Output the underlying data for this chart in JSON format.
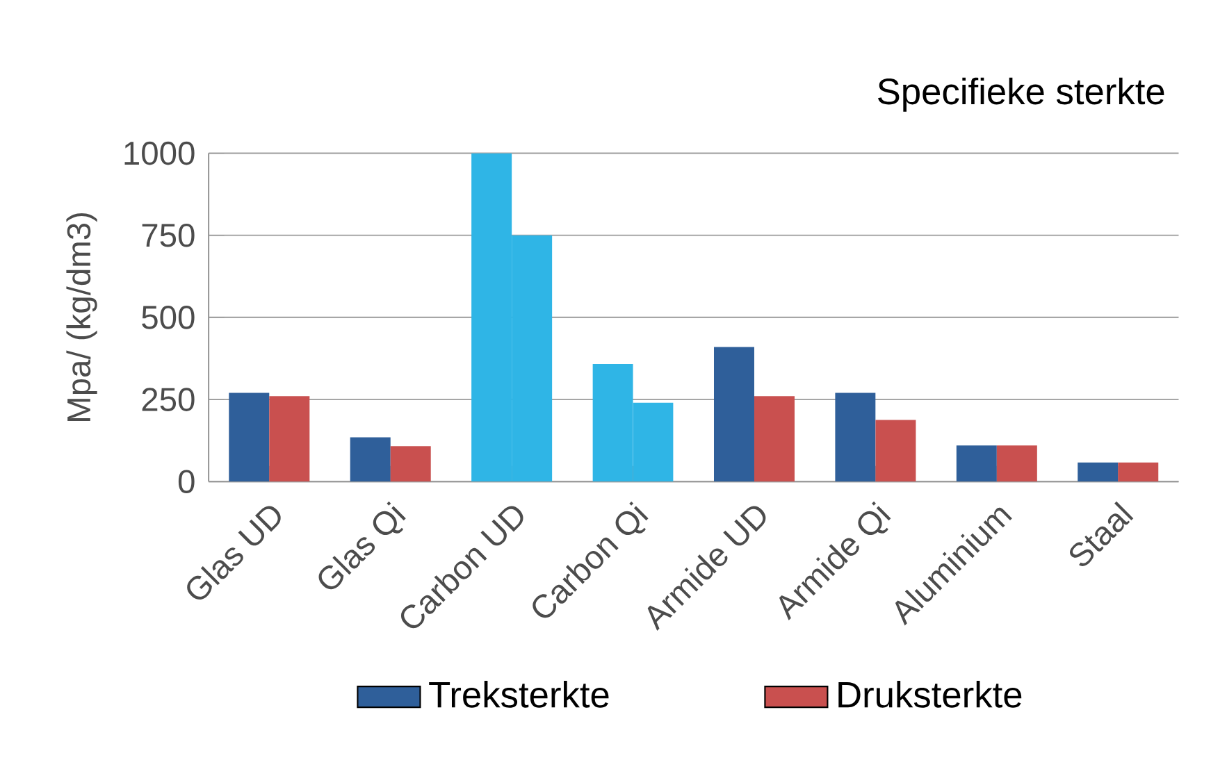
{
  "chart_data": {
    "type": "bar",
    "title": "Specifieke sterkte",
    "ylabel": "Mpa/ (kg/dm3)",
    "categories": [
      "Glas UD",
      "Glas Qi",
      "Carbon UD",
      "Carbon Qi",
      "Armide UD",
      "Armide Qi",
      "Aluminium",
      "Staal"
    ],
    "series": [
      {
        "name": "Treksterkte",
        "color": "#2f5f9a",
        "colors": [
          "#2f5f9a",
          "#2f5f9a",
          "#2fb5e6",
          "#2fb5e6",
          "#2f5f9a",
          "#2f5f9a",
          "#2f5f9a",
          "#2f5f9a"
        ],
        "values": [
          270,
          135,
          1000,
          358,
          410,
          270,
          110,
          58
        ]
      },
      {
        "name": "Druksterkte",
        "color": "#c9504f",
        "colors": [
          "#c9504f",
          "#c9504f",
          "#2fb5e6",
          "#2fb5e6",
          "#c9504f",
          "#c9504f",
          "#c9504f",
          "#c9504f"
        ],
        "values": [
          260,
          108,
          750,
          240,
          260,
          188,
          110,
          58
        ]
      }
    ],
    "ylim": [
      0,
      1000
    ],
    "yticks": [
      0,
      250,
      500,
      750,
      1000
    ],
    "grid": "y",
    "legend": "bottom"
  }
}
